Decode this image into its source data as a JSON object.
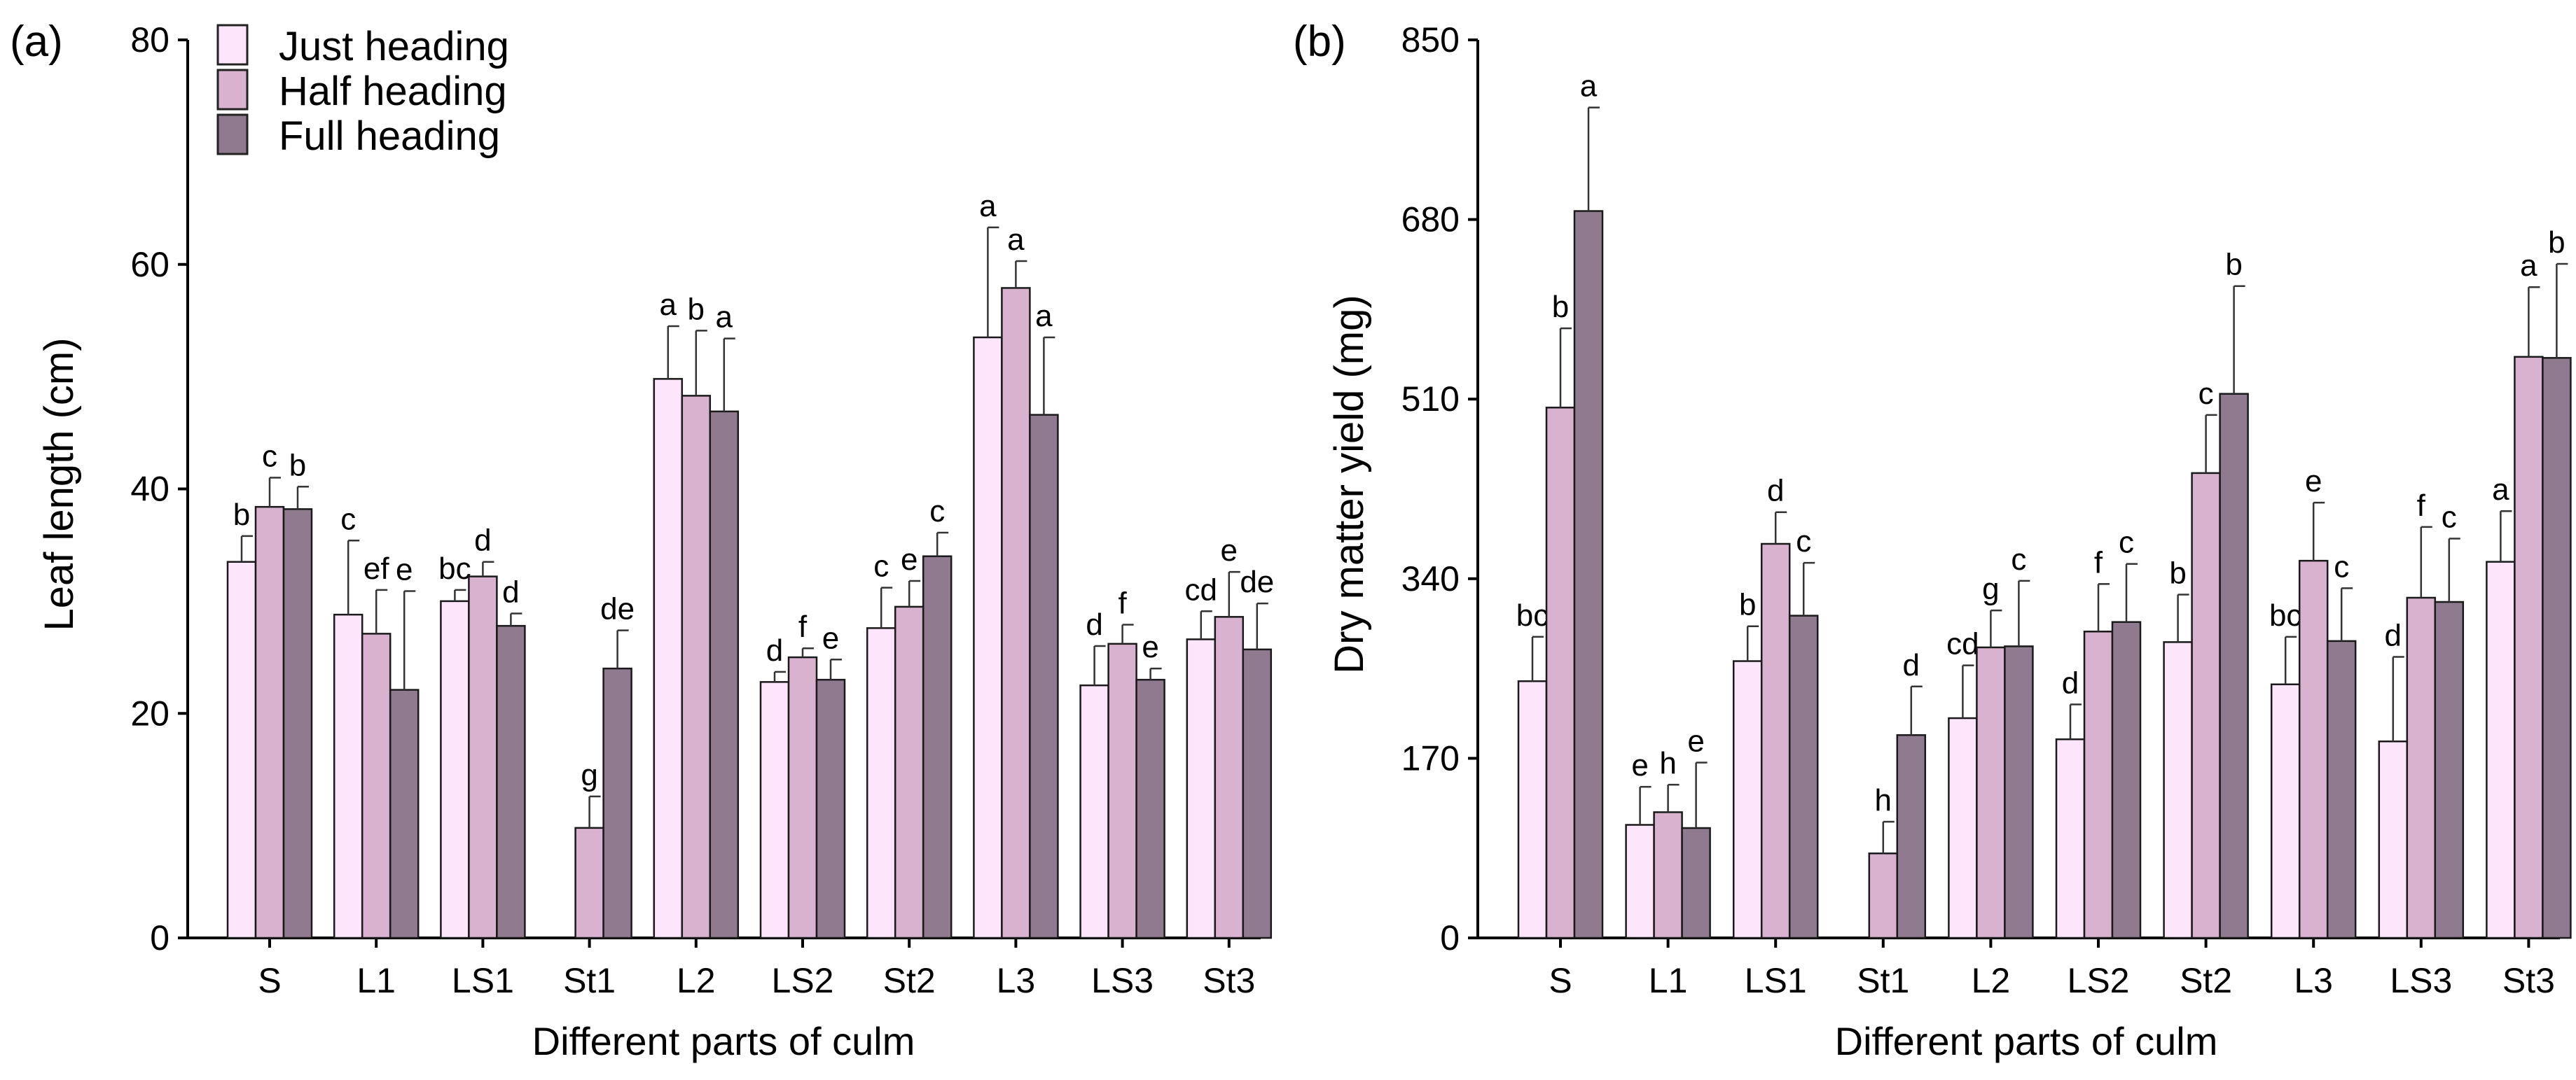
{
  "legend": {
    "entries": [
      {
        "label": "Just heading",
        "color": "#fde5fc"
      },
      {
        "label": "Half heading",
        "color": "#d8b2cf"
      },
      {
        "label": "Full heading",
        "color": "#8f7a8f"
      }
    ]
  },
  "chart_data": [
    {
      "panel_label": "(a)",
      "type": "bar",
      "title": "",
      "xlabel": "Different parts of culm",
      "ylabel": "Leaf length (cm)",
      "ylim": [
        0,
        80
      ],
      "yticks": [
        "0",
        "20",
        "40",
        "60",
        "80"
      ],
      "ytick_values": [
        0,
        20,
        40,
        60,
        80
      ],
      "categories": [
        "S",
        "L1",
        "LS1",
        "St1",
        "L2",
        "LS2",
        "St2",
        "L3",
        "LS3",
        "St3"
      ],
      "series": [
        {
          "name": "Just heading",
          "values": [
            33.5,
            28.8,
            30.0,
            null,
            49.8,
            22.8,
            27.6,
            53.5,
            22.5,
            26.6
          ],
          "errors": [
            2.3,
            6.6,
            1.0,
            null,
            4.7,
            0.9,
            3.6,
            9.8,
            3.5,
            2.5
          ],
          "letters": [
            "b",
            "c",
            "bc",
            "",
            "a",
            "d",
            "c",
            "a",
            "d",
            "cd"
          ]
        },
        {
          "name": "Half heading",
          "values": [
            38.4,
            27.1,
            32.2,
            9.8,
            48.3,
            25.0,
            29.5,
            57.9,
            26.2,
            28.6
          ],
          "errors": [
            2.6,
            3.9,
            1.3,
            2.8,
            5.8,
            0.8,
            2.3,
            2.4,
            1.7,
            4.0
          ],
          "letters": [
            "c",
            "ef",
            "d",
            "g",
            "b",
            "f",
            "e",
            "a",
            "f",
            "e"
          ]
        },
        {
          "name": "Full heading",
          "values": [
            38.2,
            22.1,
            27.8,
            24.0,
            46.9,
            23.0,
            34.0,
            46.6,
            23.0,
            25.7
          ],
          "errors": [
            2.0,
            8.8,
            1.1,
            3.4,
            6.5,
            1.8,
            2.1,
            6.9,
            1.0,
            4.1
          ],
          "letters": [
            "b",
            "e",
            "d",
            "de",
            "a",
            "e",
            "c",
            "a",
            "e",
            "de"
          ]
        }
      ]
    },
    {
      "panel_label": "(b)",
      "type": "bar",
      "title": "",
      "xlabel": "Different parts of culm",
      "ylabel": "Dry matter yield (mg)",
      "ylim": [
        0,
        850
      ],
      "yticks": [
        "0",
        "170",
        "340",
        "510",
        "680",
        "850"
      ],
      "ytick_values": [
        0,
        170,
        340,
        510,
        680,
        850
      ],
      "categories": [
        "S",
        "L1",
        "LS1",
        "St1",
        "L2",
        "LS2",
        "St2",
        "L3",
        "LS3",
        "St3"
      ],
      "series": [
        {
          "name": "Just heading",
          "values": [
            243,
            107,
            262,
            null,
            208,
            188,
            280,
            240,
            186,
            356
          ],
          "errors": [
            42,
            36,
            33,
            null,
            50,
            33,
            45,
            45,
            80,
            48
          ],
          "letters": [
            "bc",
            "e",
            "b",
            "",
            "cd",
            "d",
            "b",
            "bc",
            "d",
            "a"
          ]
        },
        {
          "name": "Half heading",
          "values": [
            502,
            119,
            373,
            80,
            275,
            290,
            440,
            357,
            322,
            550
          ],
          "errors": [
            75,
            26,
            30,
            30,
            35,
            45,
            55,
            55,
            67,
            66
          ],
          "letters": [
            "b",
            "h",
            "d",
            "h",
            "g",
            "f",
            "c",
            "e",
            "f",
            "a"
          ]
        },
        {
          "name": "Full heading",
          "values": [
            688,
            104,
            305,
            192,
            276,
            299,
            515,
            281,
            318,
            549
          ],
          "errors": [
            98,
            62,
            50,
            46,
            62,
            55,
            102,
            50,
            60,
            89
          ],
          "letters": [
            "a",
            "e",
            "c",
            "d",
            "c",
            "c",
            "b",
            "c",
            "c",
            "b"
          ]
        }
      ]
    }
  ]
}
